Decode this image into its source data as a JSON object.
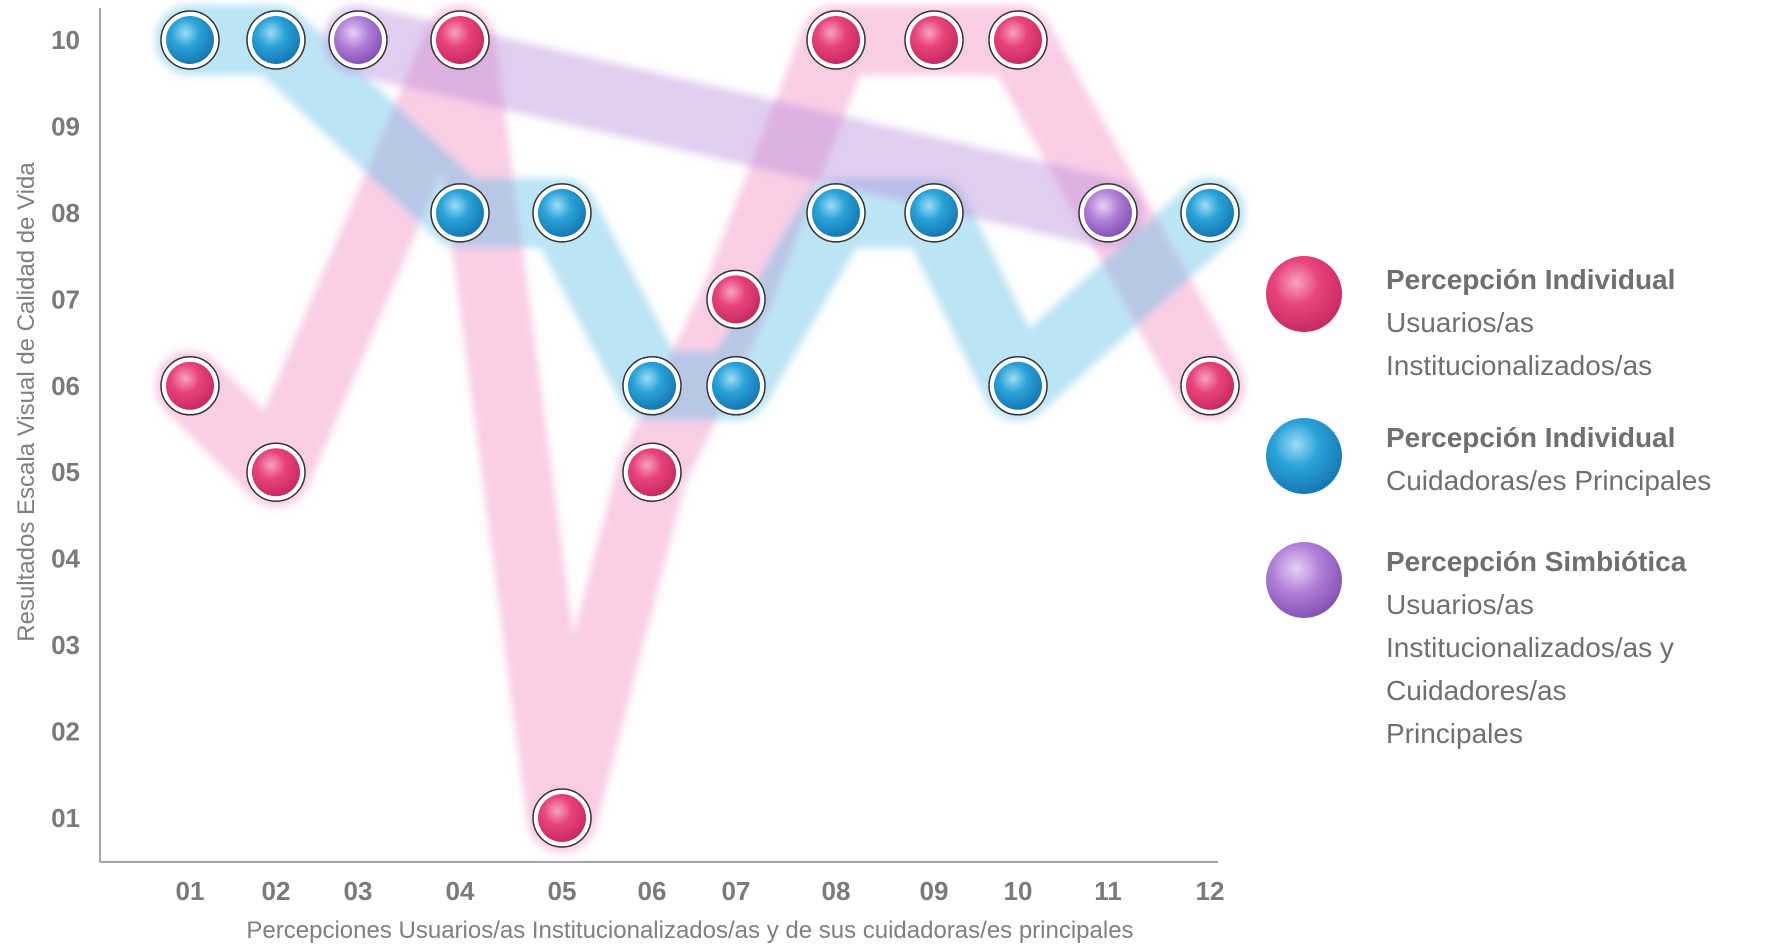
{
  "chart_data": {
    "type": "scatter",
    "xlabel": "Percepciones Usuarios/as Institucionalizados/as y de sus cuidadoras/es principales",
    "ylabel": "Resultados Escala Visual de Calidad de Vida",
    "categories": [
      "01",
      "02",
      "03",
      "04",
      "05",
      "06",
      "07",
      "08",
      "09",
      "10",
      "11",
      "12"
    ],
    "y_tick_labels": [
      "01",
      "02",
      "03",
      "04",
      "05",
      "06",
      "07",
      "08",
      "09",
      "10"
    ],
    "ylim": [
      1,
      10
    ],
    "grid": false,
    "legend_position": "right",
    "series": [
      {
        "name": "Percepción Individual Usuarios/as Institucionalizados/as",
        "color": "#e8447a",
        "points": [
          {
            "x": "01",
            "y": 6
          },
          {
            "x": "02",
            "y": 5
          },
          {
            "x": "04",
            "y": 10
          },
          {
            "x": "05",
            "y": 1
          },
          {
            "x": "06",
            "y": 5
          },
          {
            "x": "07",
            "y": 7
          },
          {
            "x": "08",
            "y": 10
          },
          {
            "x": "09",
            "y": 10
          },
          {
            "x": "10",
            "y": 10
          },
          {
            "x": "12",
            "y": 6
          }
        ]
      },
      {
        "name": "Percepción Individual Cuidadoras/es Principales",
        "color": "#2aa3d8",
        "points": [
          {
            "x": "01",
            "y": 10
          },
          {
            "x": "02",
            "y": 10
          },
          {
            "x": "04",
            "y": 8
          },
          {
            "x": "05",
            "y": 8
          },
          {
            "x": "06",
            "y": 6
          },
          {
            "x": "07",
            "y": 6
          },
          {
            "x": "08",
            "y": 8
          },
          {
            "x": "09",
            "y": 8
          },
          {
            "x": "10",
            "y": 6
          },
          {
            "x": "12",
            "y": 8
          }
        ]
      },
      {
        "name": "Percepción Simbiótica Usuarios/as Institucionalizados/as y Cuidadores/as Principales",
        "color": "#b07dd6",
        "points": [
          {
            "x": "03",
            "y": 10
          },
          {
            "x": "11",
            "y": 8
          }
        ]
      }
    ]
  },
  "legend": [
    {
      "title": "Percepción Individual",
      "subtitle": "Usuarios/as\nInstitucionalizados/as",
      "color": "#e8447a",
      "icon": "pink-watercolor-dot"
    },
    {
      "title": "Percepción Individual",
      "subtitle": "Cuidadoras/es Principales",
      "color": "#2aa3d8",
      "icon": "blue-watercolor-dot"
    },
    {
      "title": "Percepción Simbiótica",
      "subtitle": "Usuarios/as\nInstitucionalizados/as y\nCuidadores/as\nPrincipales",
      "color": "#b07dd6",
      "icon": "purple-watercolor-dot"
    }
  ]
}
